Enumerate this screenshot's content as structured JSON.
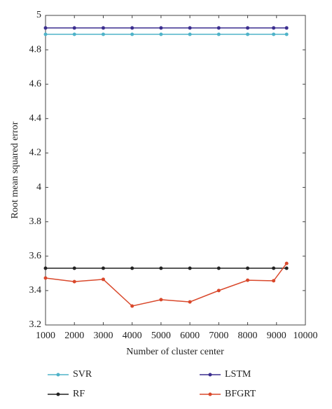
{
  "chart_data": {
    "type": "line",
    "xlabel": "Number of cluster center",
    "ylabel": "Root mean squared error",
    "x": [
      1000,
      2000,
      3000,
      4000,
      5000,
      6000,
      7000,
      8000,
      8900,
      9350
    ],
    "series": [
      {
        "name": "SVR",
        "color": "#4fb3c9",
        "values": [
          4.89,
          4.89,
          4.89,
          4.89,
          4.89,
          4.89,
          4.89,
          4.89,
          4.89,
          4.89
        ]
      },
      {
        "name": "LSTM",
        "color": "#3b2e8f",
        "values": [
          4.927,
          4.927,
          4.927,
          4.927,
          4.927,
          4.927,
          4.927,
          4.927,
          4.927,
          4.927
        ]
      },
      {
        "name": "RF",
        "color": "#222222",
        "values": [
          3.53,
          3.53,
          3.53,
          3.53,
          3.53,
          3.53,
          3.53,
          3.53,
          3.53,
          3.53
        ]
      },
      {
        "name": "BFGRT",
        "color": "#d9482b",
        "values": [
          3.473,
          3.452,
          3.465,
          3.31,
          3.347,
          3.334,
          3.4,
          3.46,
          3.457,
          3.558
        ]
      }
    ],
    "xlim": [
      1000,
      10000
    ],
    "xticks": [
      1000,
      2000,
      3000,
      4000,
      5000,
      6000,
      7000,
      8000,
      9000,
      10000
    ],
    "ylim": [
      3.2,
      5
    ],
    "yticks": [
      3.2,
      3.4,
      3.6,
      3.8,
      4,
      4.2,
      4.4,
      4.6,
      4.8,
      5
    ]
  }
}
